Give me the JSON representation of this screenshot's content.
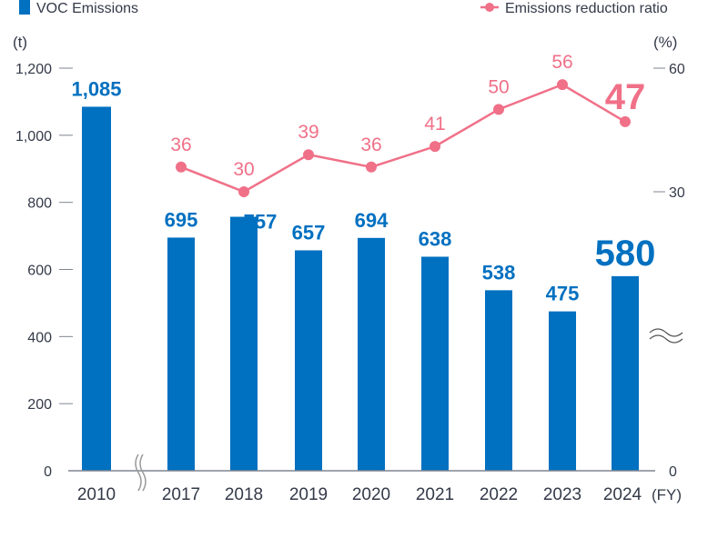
{
  "chart_data": {
    "type": "bar+line",
    "categories": [
      "2010",
      "2017",
      "2018",
      "2019",
      "2020",
      "2021",
      "2022",
      "2023",
      "2024"
    ],
    "x_unit": "(FY)",
    "series": [
      {
        "name": "VOC Emissions",
        "type": "bar",
        "axis": "left",
        "values": [
          1085,
          695,
          757,
          657,
          694,
          638,
          538,
          475,
          580
        ],
        "labels": [
          "1,085",
          "695",
          "757",
          "657",
          "694",
          "638",
          "538",
          "475",
          "580"
        ]
      },
      {
        "name": "Emissions reduction ratio",
        "type": "line",
        "axis": "right",
        "values": [
          null,
          36,
          30,
          39,
          36,
          41,
          50,
          56,
          47
        ],
        "labels": [
          "",
          "36",
          "30",
          "39",
          "36",
          "41",
          "50",
          "56",
          "47"
        ]
      }
    ],
    "left_axis": {
      "unit": "(t)",
      "ylim": [
        0,
        1200
      ],
      "ticks": [
        "0",
        "200",
        "400",
        "600",
        "800",
        "1,000",
        "1,200"
      ],
      "tick_values": [
        0,
        200,
        400,
        600,
        800,
        1000,
        1200
      ]
    },
    "right_axis": {
      "unit": "(%)",
      "ticks": [
        "0",
        "30",
        "60"
      ],
      "tick_values": [
        0,
        30,
        60
      ],
      "broken": true
    },
    "x_axis_broken_between": [
      "2010",
      "2017"
    ],
    "highlight": "2024",
    "legend": {
      "position": "top",
      "bar_label": "VOC Emissions",
      "line_label": "Emissions reduction ratio"
    },
    "colors": {
      "bar": "#0070c0",
      "line": "#f07088",
      "axis": "#7f8590",
      "text": "#333a48"
    },
    "grid": false
  }
}
